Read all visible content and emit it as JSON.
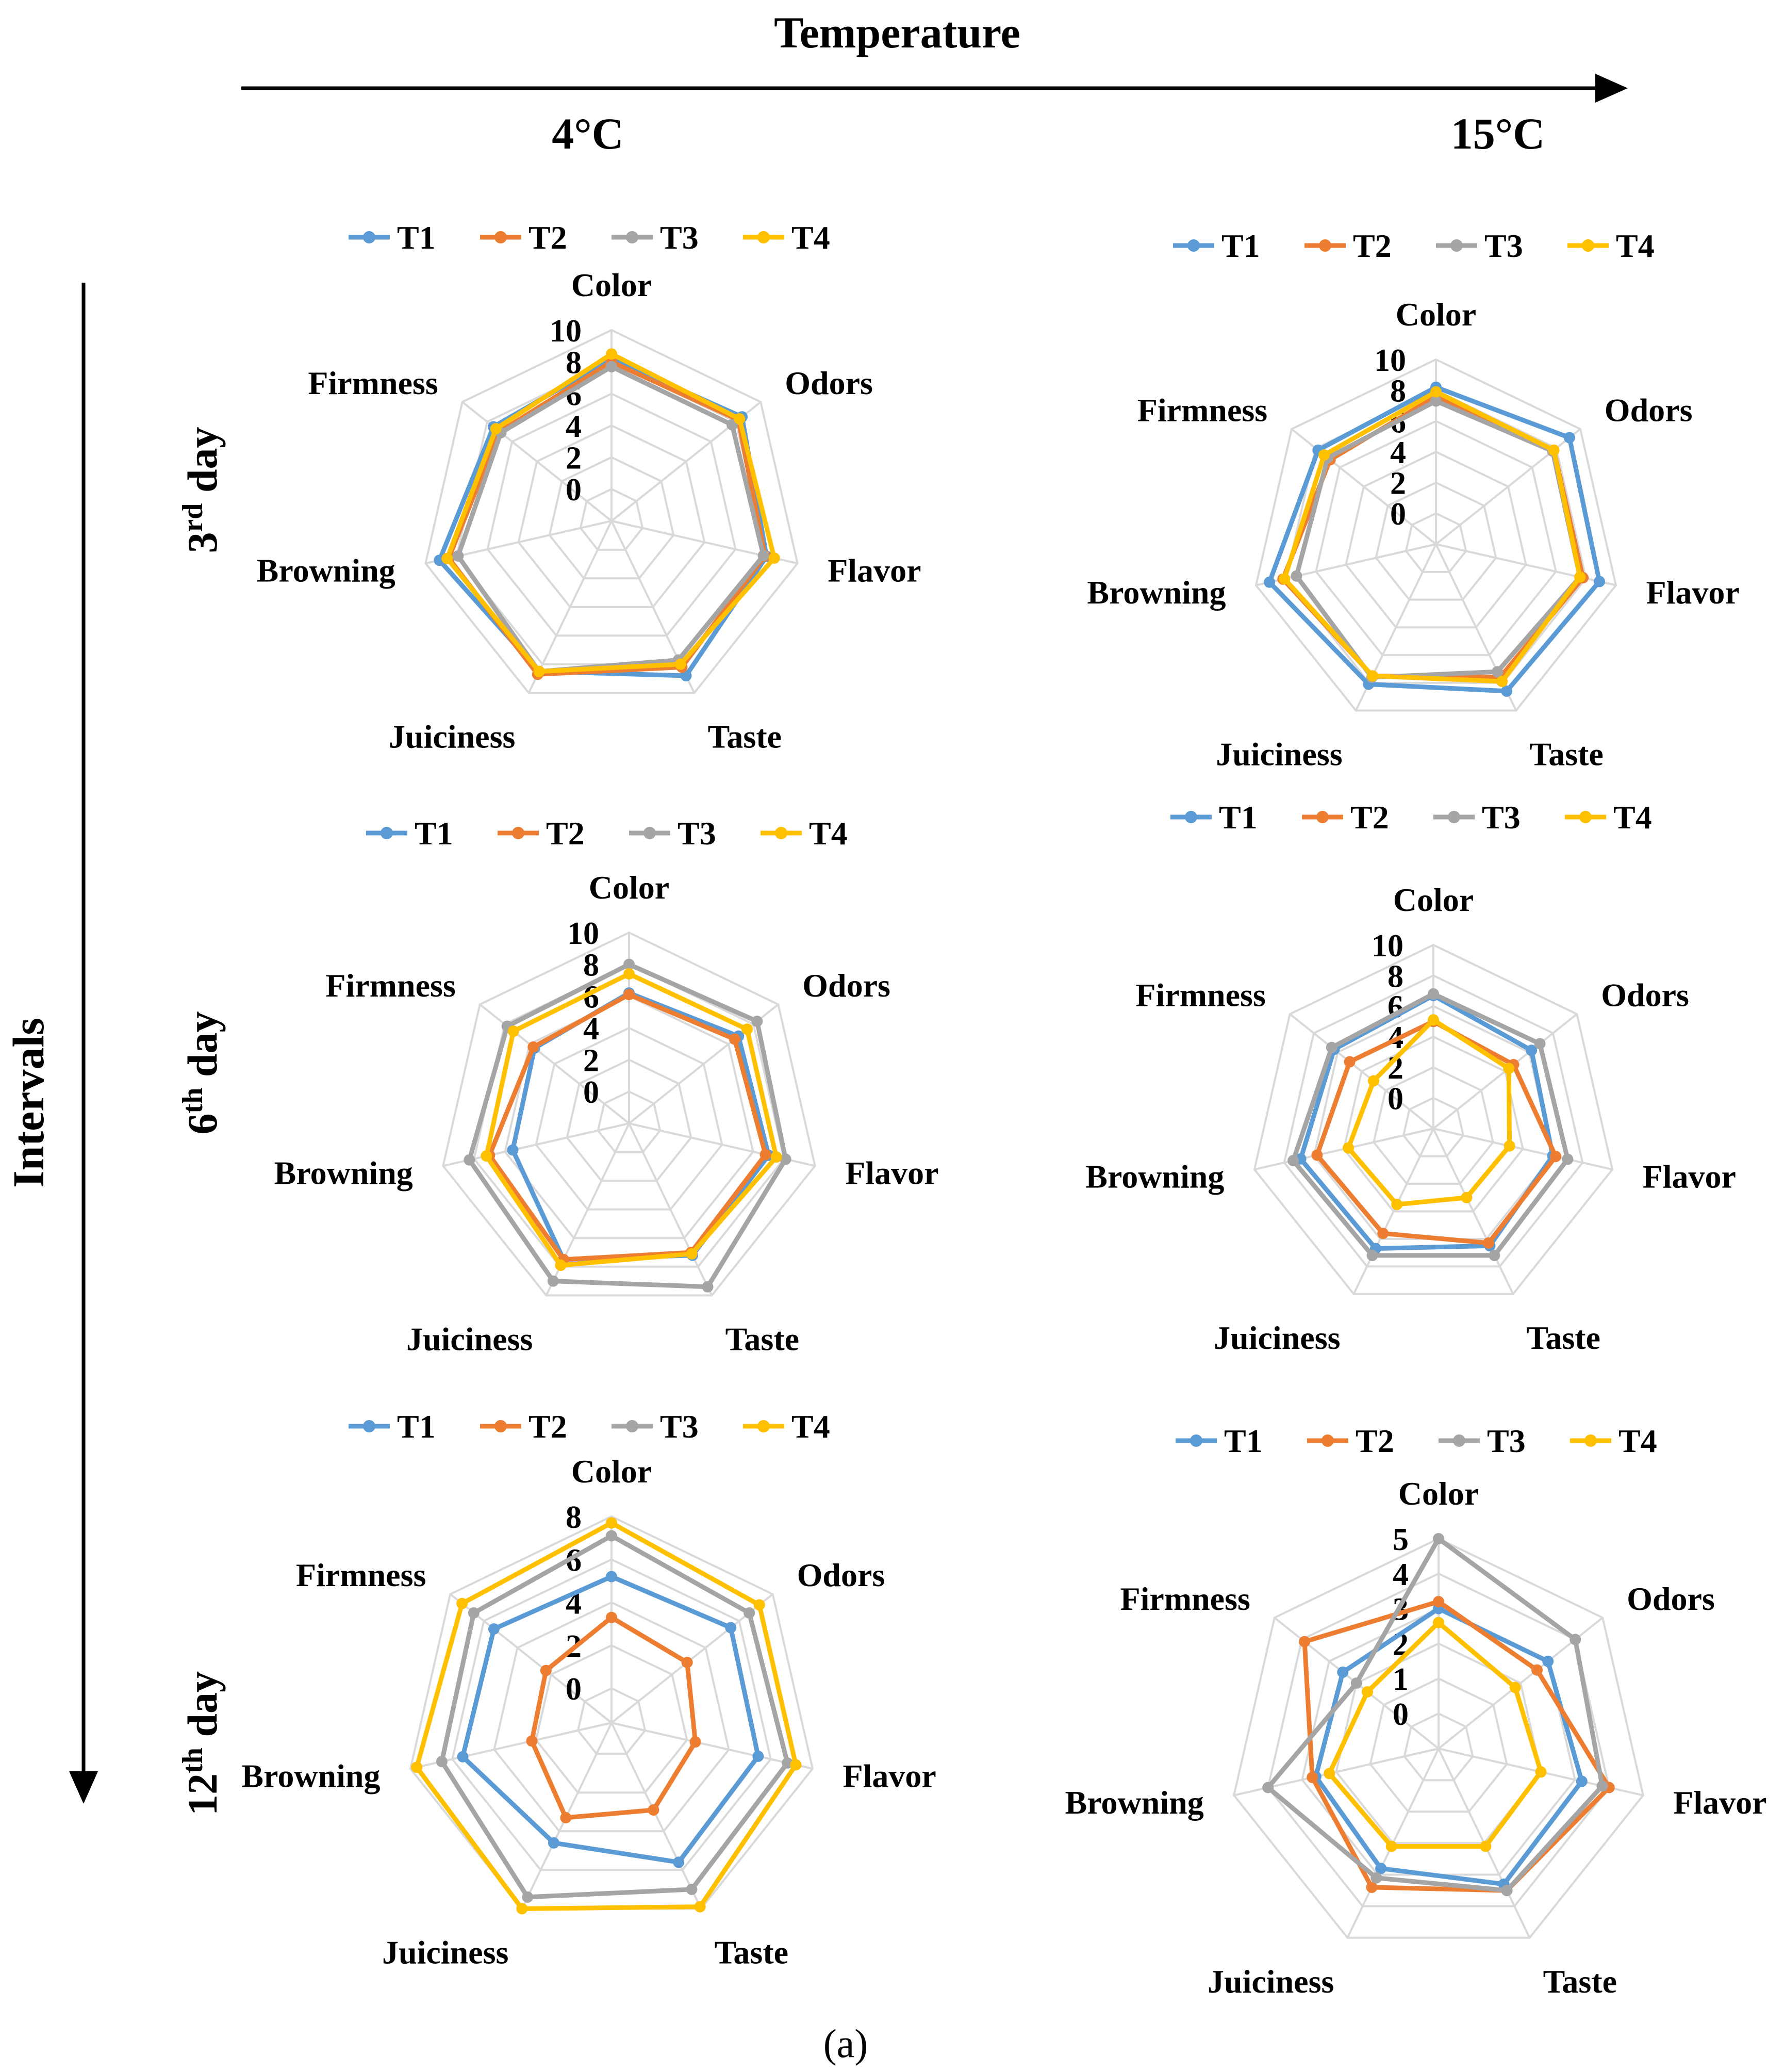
{
  "header": {
    "temperature_label": "Temperature",
    "intervals_label": "Intervals",
    "col_labels": [
      "4°C",
      "15°C"
    ],
    "row_labels": [
      {
        "num": "3",
        "sup": "rd",
        "word": "day"
      },
      {
        "num": "6",
        "sup": "th",
        "word": "day"
      },
      {
        "num": "12",
        "sup": "th",
        "word": "day"
      }
    ],
    "caption": "(a)"
  },
  "colors": {
    "T1": "#5B9BD5",
    "T2": "#ED7D31",
    "T3": "#A5A5A5",
    "T4": "#FFC000",
    "grid": "#d9d9d9",
    "text": "#000000"
  },
  "chart_data": [
    {
      "type": "radar",
      "temperature": "4°C",
      "day": "3rd",
      "axes": [
        "Color",
        "Odors",
        "Flavor",
        "Taste",
        "Juiciness",
        "Browning",
        "Firmness"
      ],
      "ticks": [
        0,
        2,
        4,
        6,
        8,
        10
      ],
      "rmax": 10,
      "legend": [
        "T1",
        "T2",
        "T3",
        "T4"
      ],
      "series": [
        {
          "name": "T1",
          "values": [
            8.2,
            8.5,
            8.0,
            8.8,
            8.5,
            9.1,
            7.5
          ]
        },
        {
          "name": "T2",
          "values": [
            8.0,
            8.2,
            7.9,
            8.2,
            8.7,
            8.5,
            7.0
          ]
        },
        {
          "name": "T3",
          "values": [
            7.7,
            7.7,
            7.8,
            7.7,
            8.5,
            7.9,
            6.9
          ]
        },
        {
          "name": "T4",
          "values": [
            8.5,
            8.3,
            8.5,
            8.0,
            8.5,
            8.6,
            7.3
          ]
        }
      ]
    },
    {
      "type": "radar",
      "temperature": "15°C",
      "day": "3rd",
      "axes": [
        "Color",
        "Odors",
        "Flavor",
        "Taste",
        "Juiciness",
        "Browning",
        "Firmness"
      ],
      "ticks": [
        0,
        2,
        4,
        6,
        8,
        10
      ],
      "rmax": 10,
      "legend": [
        "T1",
        "T2",
        "T3",
        "T4"
      ],
      "series": [
        {
          "name": "T1",
          "values": [
            8.2,
            9.1,
            8.9,
            8.6,
            8.1,
            9.1,
            7.8
          ]
        },
        {
          "name": "T2",
          "values": [
            7.6,
            7.8,
            7.8,
            7.6,
            7.5,
            8.2,
            6.8
          ]
        },
        {
          "name": "T3",
          "values": [
            7.3,
            7.7,
            7.6,
            7.2,
            7.6,
            7.3,
            7.0
          ]
        },
        {
          "name": "T4",
          "values": [
            7.9,
            7.8,
            7.6,
            7.9,
            7.5,
            8.1,
            7.3
          ]
        }
      ]
    },
    {
      "type": "radar",
      "temperature": "4°C",
      "day": "6th",
      "axes": [
        "Color",
        "Odors",
        "Flavor",
        "Taste",
        "Juiciness",
        "Browning",
        "Firmness"
      ],
      "ticks": [
        0,
        2,
        4,
        6,
        8,
        10
      ],
      "rmax": 10,
      "legend": [
        "T1",
        "T2",
        "T3",
        "T4"
      ],
      "series": [
        {
          "name": "T1",
          "values": [
            6.2,
            6.8,
            7.0,
            7.2,
            7.5,
            5.5,
            5.6
          ]
        },
        {
          "name": "T2",
          "values": [
            6.1,
            6.5,
            6.8,
            7.0,
            7.5,
            7.0,
            5.7
          ]
        },
        {
          "name": "T3",
          "values": [
            8.0,
            8.3,
            8.1,
            9.4,
            9.0,
            8.3,
            7.8
          ]
        },
        {
          "name": "T4",
          "values": [
            7.4,
            7.5,
            7.5,
            7.1,
            7.9,
            7.2,
            7.3
          ]
        }
      ]
    },
    {
      "type": "radar",
      "temperature": "15°C",
      "day": "6th",
      "axes": [
        "Color",
        "Odors",
        "Flavor",
        "Taste",
        "Juiciness",
        "Browning",
        "Firmness"
      ],
      "ticks": [
        0,
        2,
        4,
        6,
        8,
        10
      ],
      "rmax": 10,
      "legend": [
        "T1",
        "T2",
        "T3",
        "T4"
      ],
      "series": [
        {
          "name": "T1",
          "values": [
            6.7,
            6.2,
            6.0,
            6.5,
            6.7,
            6.9,
            6.3
          ]
        },
        {
          "name": "T2",
          "values": [
            5.0,
            4.7,
            6.2,
            6.3,
            5.6,
            5.8,
            5.0
          ]
        },
        {
          "name": "T3",
          "values": [
            6.8,
            6.9,
            7.0,
            7.2,
            7.2,
            7.4,
            6.5
          ]
        },
        {
          "name": "T4",
          "values": [
            5.1,
            4.3,
            3.1,
            3.0,
            3.5,
            3.7,
            3.0
          ]
        }
      ]
    },
    {
      "type": "radar",
      "temperature": "4°C",
      "day": "12th",
      "axes": [
        "Color",
        "Odors",
        "Flavor",
        "Taste",
        "Juiciness",
        "Browning",
        "Firmness"
      ],
      "ticks": [
        0,
        2,
        4,
        6,
        8
      ],
      "rmax": 8,
      "legend": [
        "T1",
        "T2",
        "T3",
        "T4"
      ],
      "series": [
        {
          "name": "T1",
          "values": [
            5.2,
            5.5,
            5.4,
            5.6,
            4.6,
            5.5,
            5.4
          ]
        },
        {
          "name": "T2",
          "values": [
            3.3,
            2.9,
            2.4,
            2.9,
            3.3,
            2.2,
            2.3
          ]
        },
        {
          "name": "T3",
          "values": [
            7.1,
            6.6,
            6.8,
            7.0,
            7.4,
            6.5,
            6.6
          ]
        },
        {
          "name": "T4",
          "values": [
            7.7,
            7.2,
            7.2,
            7.9,
            8.0,
            7.7,
            7.3
          ]
        }
      ]
    },
    {
      "type": "radar",
      "temperature": "15°C",
      "day": "12th",
      "axes": [
        "Color",
        "Odors",
        "Flavor",
        "Taste",
        "Juiciness",
        "Browning",
        "Firmness"
      ],
      "ticks": [
        0,
        1,
        2,
        3,
        4,
        5
      ],
      "rmax": 5,
      "legend": [
        "T1",
        "T2",
        "T3",
        "T4"
      ],
      "series": [
        {
          "name": "T1",
          "values": [
            3.0,
            3.0,
            3.2,
            3.3,
            2.8,
            2.6,
            2.5
          ]
        },
        {
          "name": "T2",
          "values": [
            3.2,
            2.6,
            4.0,
            3.5,
            3.4,
            2.7,
            3.9
          ]
        },
        {
          "name": "T3",
          "values": [
            5.0,
            4.0,
            3.8,
            3.5,
            3.1,
            4.0,
            2.0
          ]
        },
        {
          "name": "T4",
          "values": [
            2.6,
            1.8,
            2.0,
            2.1,
            2.1,
            2.2,
            1.6
          ]
        }
      ]
    }
  ]
}
